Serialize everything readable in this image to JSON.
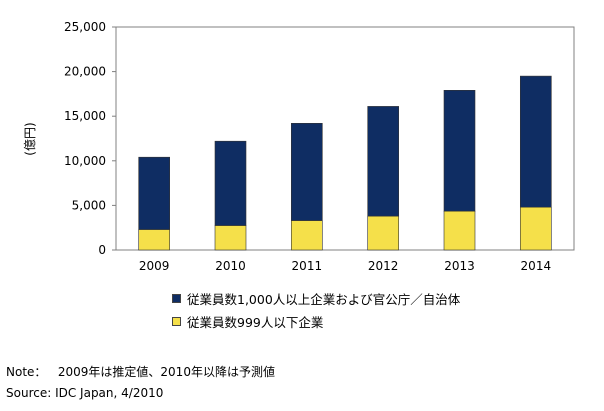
{
  "chart_data": {
    "type": "bar",
    "stacked": true,
    "categories": [
      "2009",
      "2010",
      "2011",
      "2012",
      "2013",
      "2014"
    ],
    "series": [
      {
        "name": "従業員数999人以下企業",
        "color": "#f5e04a",
        "values": [
          2300,
          2750,
          3300,
          3800,
          4350,
          4800
        ]
      },
      {
        "name": "従業員数1,000人以上企業および官公庁／自治体",
        "color": "#0f2d63",
        "values": [
          8100,
          9450,
          10900,
          12300,
          13550,
          14700
        ]
      }
    ],
    "ylabel": "(億円)",
    "ylim": [
      0,
      25000
    ],
    "yticks": [
      "0",
      "5,000",
      "10,000",
      "15,000",
      "20,000",
      "25,000"
    ],
    "grid": false,
    "legend_position": "bottom"
  },
  "notes": {
    "note_label": "Note：",
    "note_text": "2009年は推定値、2010年以降は予測値",
    "source_text": "Source: IDC Japan, 4/2010"
  }
}
